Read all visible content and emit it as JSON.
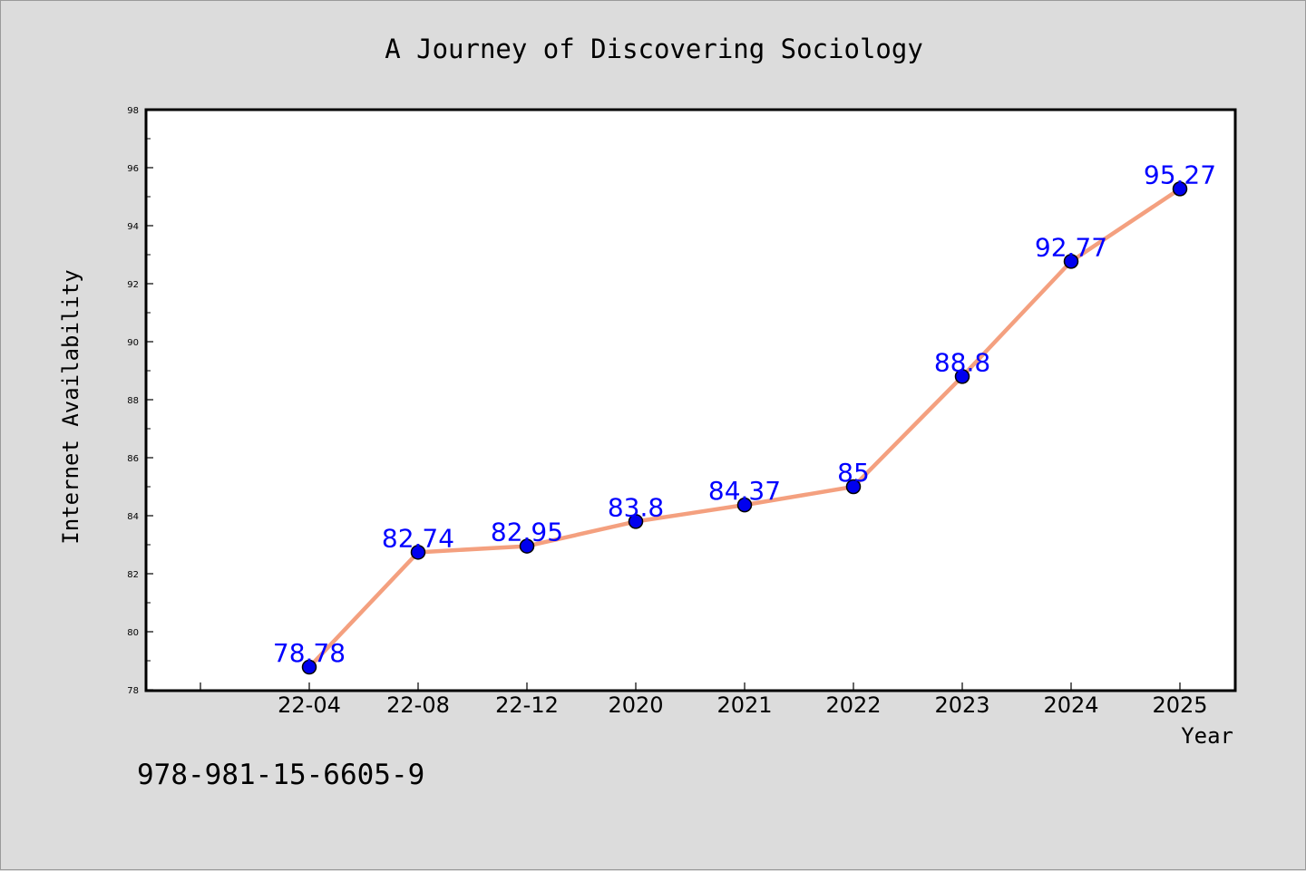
{
  "chart_data": {
    "type": "line",
    "title": "A Journey of Discovering Sociology",
    "xlabel": "Year",
    "ylabel": "Internet Availability",
    "categories": [
      "22-04",
      "22-08",
      "22-12",
      "2020",
      "2021",
      "2022",
      "2023",
      "2024",
      "2025"
    ],
    "series": [
      {
        "values": [
          78.78,
          82.74,
          82.95,
          83.8,
          84.37,
          85,
          88.8,
          92.77,
          95.27
        ],
        "data_labels": [
          "78.78",
          "82.74",
          "82.95",
          "83.8",
          "84.37",
          "85",
          "88.8",
          "92.77",
          "95.27"
        ],
        "line_color": "#f4a07f",
        "marker_color": "#0000ee"
      }
    ],
    "ylim": [
      78,
      98
    ],
    "y_ticks": [
      78,
      80,
      82,
      84,
      86,
      88,
      90,
      92,
      94,
      96,
      98
    ],
    "grid": false,
    "legend": "none",
    "label_color": "#0000ff",
    "background": "#dcdcdc",
    "plot_background": "#ffffff"
  },
  "footer": {
    "isbn": "978-981-15-6605-9"
  }
}
